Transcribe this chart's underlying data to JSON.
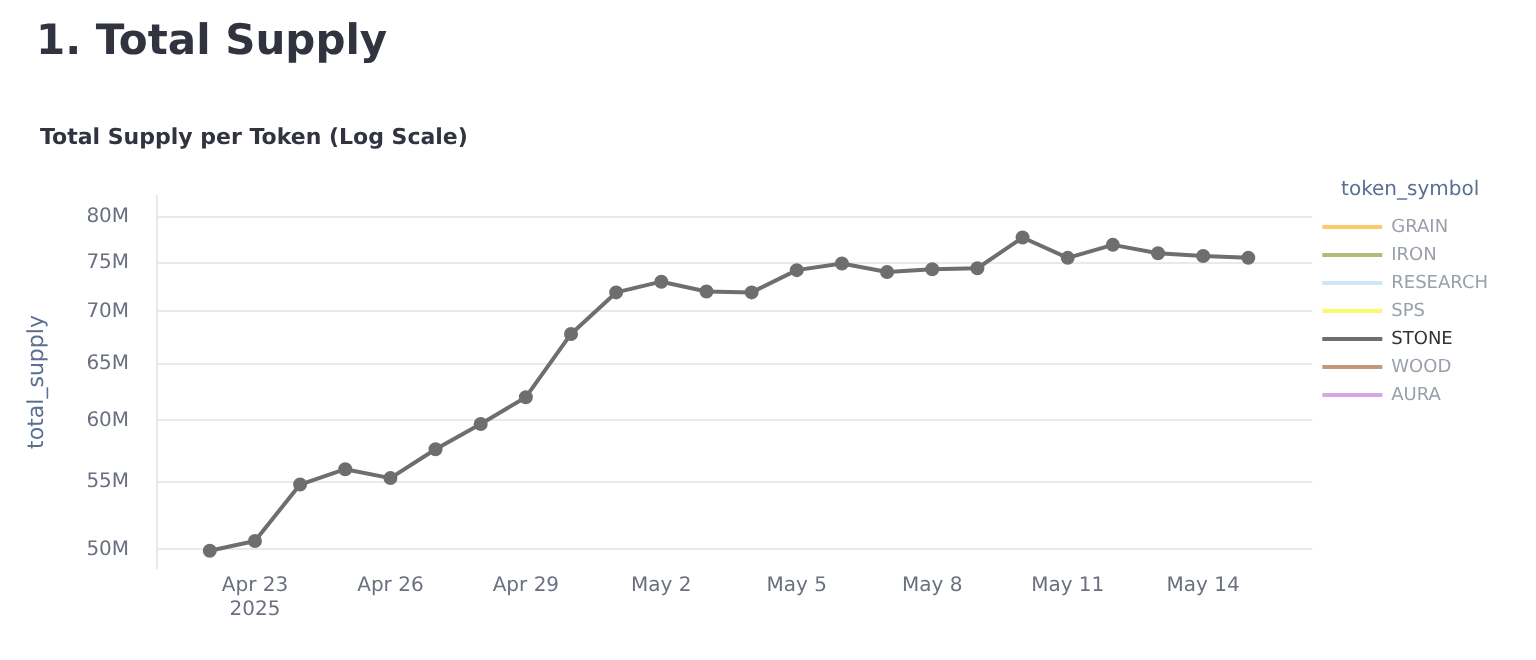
{
  "chart_data": {
    "type": "line",
    "title": "1. Total Supply",
    "subtitle": "Total Supply per Token (Log Scale)",
    "ylabel": "total_supply",
    "legend_title": "token_symbol",
    "x": [
      "2025-04-22",
      "2025-04-23",
      "2025-04-24",
      "2025-04-25",
      "2025-04-26",
      "2025-04-27",
      "2025-04-28",
      "2025-04-29",
      "2025-04-30",
      "2025-05-01",
      "2025-05-02",
      "2025-05-03",
      "2025-05-04",
      "2025-05-05",
      "2025-05-06",
      "2025-05-07",
      "2025-05-08",
      "2025-05-09",
      "2025-05-10",
      "2025-05-11",
      "2025-05-12",
      "2025-05-13",
      "2025-05-14",
      "2025-05-15"
    ],
    "series": [
      {
        "name": "GRAIN",
        "color": "#fdca6a",
        "values": [
          null,
          null,
          null,
          null,
          null,
          null,
          null,
          null,
          null,
          null,
          null,
          null,
          null,
          null,
          null,
          null,
          null,
          null,
          null,
          null,
          null,
          null,
          null,
          null
        ]
      },
      {
        "name": "IRON",
        "color": "#b5b97a",
        "values": [
          null,
          null,
          null,
          null,
          null,
          null,
          null,
          null,
          null,
          null,
          null,
          null,
          null,
          null,
          null,
          null,
          null,
          null,
          null,
          null,
          null,
          null,
          null,
          null
        ]
      },
      {
        "name": "RESEARCH",
        "color": "#cfe6f5",
        "values": [
          null,
          null,
          null,
          null,
          null,
          null,
          null,
          null,
          null,
          null,
          null,
          null,
          null,
          null,
          null,
          null,
          null,
          null,
          null,
          null,
          null,
          null,
          null,
          null
        ]
      },
      {
        "name": "SPS",
        "color": "#fafa6e",
        "values": [
          null,
          null,
          null,
          null,
          null,
          null,
          null,
          null,
          null,
          null,
          null,
          null,
          null,
          null,
          null,
          null,
          null,
          null,
          null,
          null,
          null,
          null,
          null,
          null
        ]
      },
      {
        "name": "STONE",
        "color": "#6e6e6e",
        "values": [
          49900000,
          50600000,
          54800000,
          56000000,
          55300000,
          57600000,
          59700000,
          62000000,
          67800000,
          71900000,
          73000000,
          72000000,
          71900000,
          74200000,
          74900000,
          74000000,
          74300000,
          74400000,
          77700000,
          75500000,
          76900000,
          76000000,
          75700000,
          75500000
        ]
      },
      {
        "name": "WOOD",
        "color": "#c49878",
        "values": [
          null,
          null,
          null,
          null,
          null,
          null,
          null,
          null,
          null,
          null,
          null,
          null,
          null,
          null,
          null,
          null,
          null,
          null,
          null,
          null,
          null,
          null,
          null,
          null
        ]
      },
      {
        "name": "AURA",
        "color": "#d9a5e8",
        "values": [
          null,
          null,
          null,
          null,
          null,
          null,
          null,
          null,
          null,
          null,
          null,
          null,
          null,
          null,
          null,
          null,
          null,
          null,
          null,
          null,
          null,
          null,
          null,
          null
        ]
      }
    ],
    "log": "y",
    "ylim": [
      48700000,
      82400000
    ],
    "yticks": [
      {
        "value": 50000000,
        "label": "50M"
      },
      {
        "value": 55000000,
        "label": "55M"
      },
      {
        "value": 60000000,
        "label": "60M"
      },
      {
        "value": 65000000,
        "label": "65M"
      },
      {
        "value": 70000000,
        "label": "70M"
      },
      {
        "value": 75000000,
        "label": "75M"
      },
      {
        "value": 80000000,
        "label": "80M"
      }
    ],
    "xlim": [
      "2025-04-20T20:00",
      "2025-05-16T10:00"
    ],
    "xticks": [
      {
        "value": "2025-04-23",
        "label": "Apr 23\n2025"
      },
      {
        "value": "2025-04-26",
        "label": "Apr 26"
      },
      {
        "value": "2025-04-29",
        "label": "Apr 29"
      },
      {
        "value": "2025-05-02",
        "label": "May 2"
      },
      {
        "value": "2025-05-05",
        "label": "May 5"
      },
      {
        "value": "2025-05-08",
        "label": "May 8"
      },
      {
        "value": "2025-05-11",
        "label": "May 11"
      },
      {
        "value": "2025-05-14",
        "label": "May 14"
      }
    ],
    "grid": "y",
    "legend": "top right",
    "marker": "circle",
    "line_style": "solid"
  }
}
